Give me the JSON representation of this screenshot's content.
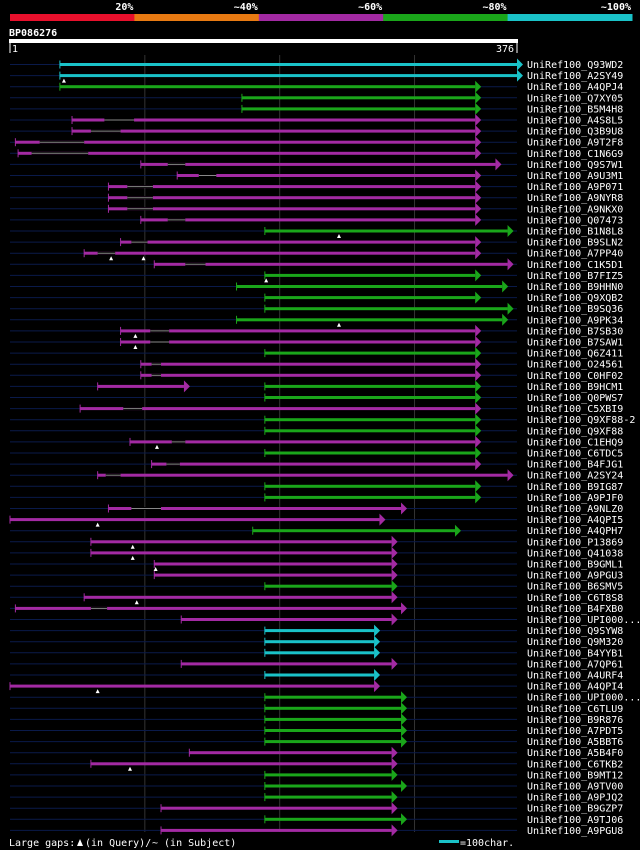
{
  "chart_data": {
    "type": "alignment-overview",
    "query_id": "BP086276",
    "query_start_label": "1",
    "query_end_label": "376",
    "query_length": 376,
    "identity_legend": [
      {
        "label": "20%",
        "color": "#e8102c"
      },
      {
        "label": "~40%",
        "color": "#e87a12"
      },
      {
        "label": "~60%",
        "color": "#a32aa3"
      },
      {
        "label": "~80%",
        "color": "#1aa61a"
      },
      {
        "label": "~100%",
        "color": "#1ac2c8"
      }
    ],
    "colors": {
      "cyan": "#1ac2c8",
      "green": "#1aa61a",
      "purple": "#a32aa3",
      "row_dark": "#0a1a4a",
      "gridline": "#333333"
    },
    "hits": [
      {
        "label": "UniRef100_Q93WD2",
        "start": 37,
        "end": 376,
        "color": "cyan",
        "qgaps": [],
        "sgaps": []
      },
      {
        "label": "UniRef100_A2SY49",
        "start": 37,
        "end": 376,
        "color": "cyan",
        "qgaps": [
          40
        ],
        "sgaps": []
      },
      {
        "label": "UniRef100_A4QPJ4",
        "start": 37,
        "end": 345,
        "color": "green",
        "qgaps": [],
        "sgaps": []
      },
      {
        "label": "UniRef100_Q7XY05",
        "start": 172,
        "end": 345,
        "color": "green",
        "qgaps": [],
        "sgaps": []
      },
      {
        "label": "UniRef100_B5M4H8",
        "start": 172,
        "end": 345,
        "color": "green",
        "qgaps": [],
        "sgaps": []
      },
      {
        "label": "UniRef100_A4S8L5",
        "start": 46,
        "end": 345,
        "color": "purple",
        "qgaps": [],
        "sgaps": [
          [
            70,
            92
          ]
        ]
      },
      {
        "label": "UniRef100_Q3B9U8",
        "start": 46,
        "end": 345,
        "color": "purple",
        "qgaps": [],
        "sgaps": [
          [
            60,
            82
          ]
        ]
      },
      {
        "label": "UniRef100_A9T2F8",
        "start": 4,
        "end": 345,
        "color": "purple",
        "qgaps": [],
        "sgaps": [
          [
            22,
            55
          ]
        ]
      },
      {
        "label": "UniRef100_C1N6G9",
        "start": 6,
        "end": 345,
        "color": "purple",
        "qgaps": [],
        "sgaps": [
          [
            16,
            58
          ]
        ]
      },
      {
        "label": "UniRef100_Q9S7W1",
        "start": 97,
        "end": 360,
        "color": "purple",
        "qgaps": [],
        "sgaps": [
          [
            117,
            130
          ]
        ]
      },
      {
        "label": "UniRef100_A9U3M1",
        "start": 124,
        "end": 345,
        "color": "purple",
        "qgaps": [],
        "sgaps": [
          [
            140,
            153
          ]
        ]
      },
      {
        "label": "UniRef100_A9P071",
        "start": 73,
        "end": 345,
        "color": "purple",
        "qgaps": [],
        "sgaps": [
          [
            87,
            106
          ]
        ]
      },
      {
        "label": "UniRef100_A9NYR8",
        "start": 73,
        "end": 345,
        "color": "purple",
        "qgaps": [],
        "sgaps": [
          [
            87,
            106
          ]
        ]
      },
      {
        "label": "UniRef100_A9NKX0",
        "start": 73,
        "end": 345,
        "color": "purple",
        "qgaps": [],
        "sgaps": [
          [
            87,
            106
          ]
        ]
      },
      {
        "label": "UniRef100_Q07473",
        "start": 97,
        "end": 345,
        "color": "purple",
        "qgaps": [],
        "sgaps": [
          [
            117,
            130
          ]
        ]
      },
      {
        "label": "UniRef100_B1N8L8",
        "start": 189,
        "end": 369,
        "color": "green",
        "qgaps": [
          244
        ],
        "sgaps": []
      },
      {
        "label": "UniRef100_B9SLN2",
        "start": 82,
        "end": 345,
        "color": "purple",
        "qgaps": [],
        "sgaps": [
          [
            90,
            102
          ]
        ]
      },
      {
        "label": "UniRef100_A7PP40",
        "start": 55,
        "end": 345,
        "color": "purple",
        "qgaps": [
          75,
          99
        ],
        "sgaps": [
          [
            65,
            78
          ]
        ]
      },
      {
        "label": "UniRef100_C1K5D1",
        "start": 107,
        "end": 369,
        "color": "purple",
        "qgaps": [],
        "sgaps": [
          [
            130,
            145
          ]
        ]
      },
      {
        "label": "UniRef100_B7FIZ5",
        "start": 189,
        "end": 345,
        "color": "green",
        "qgaps": [
          190
        ],
        "sgaps": []
      },
      {
        "label": "UniRef100_B9HHN0",
        "start": 168,
        "end": 365,
        "color": "green",
        "qgaps": [],
        "sgaps": []
      },
      {
        "label": "UniRef100_Q9XQB2",
        "start": 189,
        "end": 345,
        "color": "green",
        "qgaps": [],
        "sgaps": []
      },
      {
        "label": "UniRef100_B9SQ36",
        "start": 189,
        "end": 369,
        "color": "green",
        "qgaps": [],
        "sgaps": []
      },
      {
        "label": "UniRef100_A9PK34",
        "start": 168,
        "end": 365,
        "color": "green",
        "qgaps": [
          244
        ],
        "sgaps": []
      },
      {
        "label": "UniRef100_B7SB30",
        "start": 82,
        "end": 345,
        "color": "purple",
        "qgaps": [
          93
        ],
        "sgaps": [
          [
            104,
            118
          ]
        ]
      },
      {
        "label": "UniRef100_B7SAW1",
        "start": 82,
        "end": 345,
        "color": "purple",
        "qgaps": [
          93
        ],
        "sgaps": [
          [
            104,
            118
          ]
        ]
      },
      {
        "label": "UniRef100_Q6Z411",
        "start": 189,
        "end": 345,
        "color": "green",
        "qgaps": [],
        "sgaps": []
      },
      {
        "label": "UniRef100_O24561",
        "start": 97,
        "end": 345,
        "color": "purple",
        "qgaps": [],
        "sgaps": [
          [
            105,
            112
          ]
        ]
      },
      {
        "label": "UniRef100_C0HF02",
        "start": 97,
        "end": 345,
        "color": "purple",
        "qgaps": [],
        "sgaps": [
          [
            105,
            112
          ]
        ]
      },
      {
        "label": "UniRef100_B9HCM1",
        "start": 65,
        "end": 129,
        "color": "purple",
        "qgaps": [],
        "sgaps": [],
        "tail": {
          "start": 189,
          "end": 345,
          "color": "green"
        }
      },
      {
        "label": "UniRef100_Q0PWS7",
        "start": 189,
        "end": 345,
        "color": "green",
        "qgaps": [],
        "sgaps": []
      },
      {
        "label": "UniRef100_C5XBI9",
        "start": 52,
        "end": 345,
        "color": "purple",
        "qgaps": [],
        "sgaps": [
          [
            84,
            98
          ]
        ]
      },
      {
        "label": "UniRef100_Q9XF88-2",
        "start": 189,
        "end": 345,
        "color": "green",
        "qgaps": [],
        "sgaps": []
      },
      {
        "label": "UniRef100_Q9XF88",
        "start": 189,
        "end": 345,
        "color": "green",
        "qgaps": [],
        "sgaps": []
      },
      {
        "label": "UniRef100_C1EHQ9",
        "start": 89,
        "end": 345,
        "color": "purple",
        "qgaps": [
          109
        ],
        "sgaps": [
          [
            120,
            130
          ]
        ]
      },
      {
        "label": "UniRef100_C6TDC5",
        "start": 189,
        "end": 345,
        "color": "green",
        "qgaps": [],
        "sgaps": []
      },
      {
        "label": "UniRef100_B4FJG1",
        "start": 105,
        "end": 345,
        "color": "purple",
        "qgaps": [],
        "sgaps": [
          [
            116,
            126
          ]
        ]
      },
      {
        "label": "UniRef100_A2SY24",
        "start": 65,
        "end": 369,
        "color": "purple",
        "qgaps": [],
        "sgaps": [
          [
            71,
            82
          ]
        ]
      },
      {
        "label": "UniRef100_B9IG87",
        "start": 189,
        "end": 345,
        "color": "green",
        "qgaps": [],
        "sgaps": []
      },
      {
        "label": "UniRef100_A9PJF0",
        "start": 189,
        "end": 345,
        "color": "green",
        "qgaps": [],
        "sgaps": []
      },
      {
        "label": "UniRef100_A9NLZ0",
        "start": 73,
        "end": 290,
        "color": "purple",
        "qgaps": [],
        "sgaps": [
          [
            90,
            112
          ]
        ]
      },
      {
        "label": "UniRef100_A4QPI5",
        "start": 0,
        "end": 274,
        "color": "purple",
        "qgaps": [
          65
        ],
        "sgaps": []
      },
      {
        "label": "UniRef100_A4QPH7",
        "start": 180,
        "end": 330,
        "color": "green",
        "qgaps": [],
        "sgaps": []
      },
      {
        "label": "UniRef100_P13869",
        "start": 60,
        "end": 283,
        "color": "purple",
        "qgaps": [
          91
        ],
        "sgaps": []
      },
      {
        "label": "UniRef100_Q41038",
        "start": 60,
        "end": 283,
        "color": "purple",
        "qgaps": [
          91
        ],
        "sgaps": []
      },
      {
        "label": "UniRef100_B9GML1",
        "start": 107,
        "end": 283,
        "color": "purple",
        "qgaps": [
          108
        ],
        "sgaps": []
      },
      {
        "label": "UniRef100_A9PGU3",
        "start": 107,
        "end": 283,
        "color": "purple",
        "qgaps": [],
        "sgaps": []
      },
      {
        "label": "UniRef100_B6SMV5",
        "start": 189,
        "end": 283,
        "color": "green",
        "qgaps": [],
        "sgaps": []
      },
      {
        "label": "UniRef100_C6T8S8",
        "start": 55,
        "end": 283,
        "color": "purple",
        "qgaps": [
          94
        ],
        "sgaps": []
      },
      {
        "label": "UniRef100_B4FXB0",
        "start": 4,
        "end": 290,
        "color": "purple",
        "qgaps": [],
        "sgaps": [
          [
            60,
            72
          ]
        ]
      },
      {
        "label": "UniRef100_UPI000...",
        "start": 127,
        "end": 283,
        "color": "purple",
        "qgaps": [],
        "sgaps": []
      },
      {
        "label": "UniRef100_Q9SYW8",
        "start": 189,
        "end": 270,
        "color": "cyan",
        "qgaps": [],
        "sgaps": []
      },
      {
        "label": "UniRef100_Q9M320",
        "start": 189,
        "end": 270,
        "color": "cyan",
        "qgaps": [],
        "sgaps": []
      },
      {
        "label": "UniRef100_B4YYB1",
        "start": 189,
        "end": 270,
        "color": "cyan",
        "qgaps": [],
        "sgaps": []
      },
      {
        "label": "UniRef100_A7QP61",
        "start": 127,
        "end": 283,
        "color": "purple",
        "qgaps": [],
        "sgaps": []
      },
      {
        "label": "UniRef100_A4URF4",
        "start": 189,
        "end": 270,
        "color": "cyan",
        "qgaps": [],
        "sgaps": []
      },
      {
        "label": "UniRef100_A4QPI4",
        "start": 0,
        "end": 270,
        "color": "purple",
        "qgaps": [
          65
        ],
        "sgaps": []
      },
      {
        "label": "UniRef100_UPI000...",
        "start": 189,
        "end": 290,
        "color": "green",
        "qgaps": [],
        "sgaps": []
      },
      {
        "label": "UniRef100_C6TLU9",
        "start": 189,
        "end": 290,
        "color": "green",
        "qgaps": [],
        "sgaps": []
      },
      {
        "label": "UniRef100_B9R876",
        "start": 189,
        "end": 290,
        "color": "green",
        "qgaps": [],
        "sgaps": []
      },
      {
        "label": "UniRef100_A7PDT5",
        "start": 189,
        "end": 290,
        "color": "green",
        "qgaps": [],
        "sgaps": []
      },
      {
        "label": "UniRef100_A5BBT6",
        "start": 189,
        "end": 290,
        "color": "green",
        "qgaps": [],
        "sgaps": []
      },
      {
        "label": "UniRef100_A5B4F0",
        "start": 133,
        "end": 283,
        "color": "purple",
        "qgaps": [],
        "sgaps": []
      },
      {
        "label": "UniRef100_C6TKB2",
        "start": 60,
        "end": 283,
        "color": "purple",
        "qgaps": [
          89
        ],
        "sgaps": []
      },
      {
        "label": "UniRef100_B9MT12",
        "start": 189,
        "end": 283,
        "color": "green",
        "qgaps": [],
        "sgaps": []
      },
      {
        "label": "UniRef100_A9TV00",
        "start": 189,
        "end": 290,
        "color": "green",
        "qgaps": [],
        "sgaps": []
      },
      {
        "label": "UniRef100_A9PJQ2",
        "start": 189,
        "end": 283,
        "color": "green",
        "qgaps": [],
        "sgaps": []
      },
      {
        "label": "UniRef100_B9GZP7",
        "start": 112,
        "end": 283,
        "color": "purple",
        "qgaps": [],
        "sgaps": []
      },
      {
        "label": "UniRef100_A9TJ06",
        "start": 189,
        "end": 290,
        "color": "green",
        "qgaps": [],
        "sgaps": []
      },
      {
        "label": "UniRef100_A9PGU8",
        "start": 112,
        "end": 283,
        "color": "purple",
        "qgaps": [],
        "sgaps": []
      }
    ],
    "footer": {
      "prefix": "Large gaps: ",
      "query_gap_text": "(in Query)/",
      "subject_gap_text": "~ (in Subject)",
      "scale_text": "=100char."
    }
  }
}
